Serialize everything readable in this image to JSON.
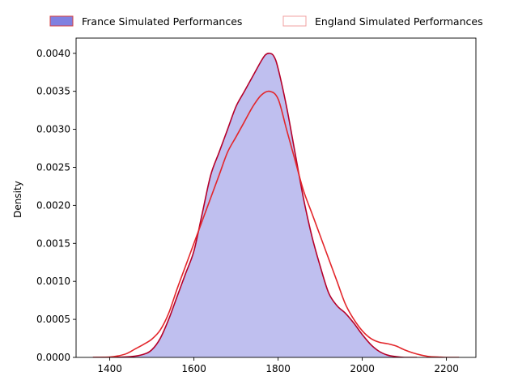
{
  "chart_data": {
    "type": "area",
    "title": "",
    "xlabel": "",
    "ylabel": "Density",
    "xlim": [
      1320,
      2270
    ],
    "ylim": [
      0,
      0.0042
    ],
    "x_ticks": [
      1400,
      1600,
      1800,
      2000,
      2200
    ],
    "y_ticks": [
      0.0,
      0.0005,
      0.001,
      0.0015,
      0.002,
      0.0025,
      0.003,
      0.0035,
      0.004
    ],
    "x_tick_labels": [
      "1400",
      "1600",
      "1800",
      "2000",
      "2200"
    ],
    "y_tick_labels": [
      "0.0000",
      "0.0005",
      "0.0010",
      "0.0015",
      "0.0020",
      "0.0025",
      "0.0030",
      "0.0035",
      "0.0040"
    ],
    "grid": false,
    "legend_position": "top",
    "series": [
      {
        "name": "France Simulated Performances",
        "style": "filled",
        "fill_color": "#8080e0",
        "fill_opacity": 0.5,
        "line_color": "#b5002a",
        "x": [
          1360,
          1400,
          1450,
          1480,
          1500,
          1520,
          1540,
          1560,
          1580,
          1600,
          1620,
          1640,
          1660,
          1680,
          1700,
          1720,
          1740,
          1760,
          1770,
          1780,
          1790,
          1800,
          1820,
          1840,
          1860,
          1880,
          1900,
          1920,
          1940,
          1960,
          1980,
          2000,
          2020,
          2040,
          2060,
          2080,
          2100,
          2130
        ],
        "y": [
          0.0,
          0.0,
          1e-05,
          4e-05,
          0.0001,
          0.00025,
          0.0005,
          0.0008,
          0.0011,
          0.0014,
          0.0019,
          0.0024,
          0.0027,
          0.003,
          0.0033,
          0.0035,
          0.0037,
          0.0039,
          0.00398,
          0.004,
          0.00396,
          0.0038,
          0.0033,
          0.0027,
          0.0021,
          0.0016,
          0.0012,
          0.00085,
          0.00068,
          0.00058,
          0.00045,
          0.0003,
          0.00017,
          8e-05,
          3e-05,
          1e-05,
          0.0,
          0.0
        ]
      },
      {
        "name": "England Simulated Performances",
        "style": "line",
        "fill_color": "none",
        "line_color": "#e3262b",
        "x": [
          1360,
          1400,
          1420,
          1440,
          1460,
          1480,
          1500,
          1520,
          1540,
          1560,
          1580,
          1600,
          1620,
          1640,
          1660,
          1680,
          1700,
          1720,
          1740,
          1760,
          1780,
          1800,
          1820,
          1840,
          1860,
          1880,
          1900,
          1920,
          1940,
          1960,
          1980,
          2000,
          2020,
          2040,
          2060,
          2080,
          2100,
          2120,
          2140,
          2160,
          2180,
          2200,
          2230
        ],
        "y": [
          0.0,
          5e-06,
          2e-05,
          5e-05,
          0.00011,
          0.00017,
          0.00024,
          0.00036,
          0.00058,
          0.0009,
          0.0012,
          0.0015,
          0.0018,
          0.0021,
          0.0024,
          0.0027,
          0.0029,
          0.0031,
          0.0033,
          0.00345,
          0.0035,
          0.0034,
          0.003,
          0.0026,
          0.0022,
          0.0019,
          0.0016,
          0.0013,
          0.001,
          0.0007,
          0.0005,
          0.00035,
          0.00025,
          0.0002,
          0.00018,
          0.00015,
          0.0001,
          6e-05,
          3e-05,
          1e-05,
          5e-06,
          0.0,
          0.0
        ]
      }
    ]
  }
}
